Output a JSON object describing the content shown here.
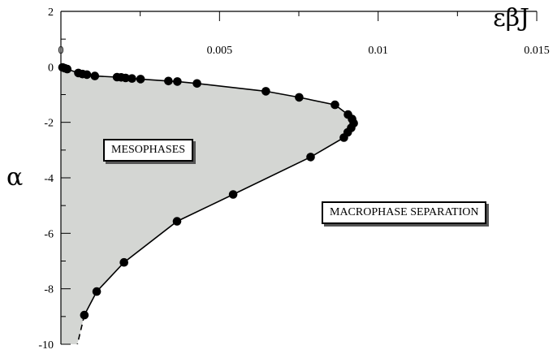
{
  "chart_data": {
    "type": "scatter",
    "xlabel": "εβJ",
    "ylabel": "α",
    "xlim": [
      0,
      0.015
    ],
    "ylim": [
      -10,
      2
    ],
    "x_axis_position": "top",
    "x_ticks": [
      0,
      0.005,
      0.01,
      0.015
    ],
    "x_tick_labels": [
      "0",
      "0.005",
      "0.01",
      "0.015"
    ],
    "y_ticks": [
      2,
      0,
      -2,
      -4,
      -6,
      -8,
      -10
    ],
    "y_tick_labels": [
      "2",
      "0",
      "-2",
      "-4",
      "-6",
      "-8",
      "-10"
    ],
    "grid": false,
    "series": [
      {
        "color": "#000000",
        "x": [
          5e-05,
          0.00012,
          0.0002,
          0.00055,
          0.00068,
          0.00082,
          0.00107,
          0.00177,
          0.0019,
          0.00204,
          0.00224,
          0.00251,
          0.00339,
          0.00367,
          0.00429,
          0.00646,
          0.00751,
          0.00864,
          0.00905,
          0.00918,
          0.00923,
          0.00915,
          0.00904,
          0.00892,
          0.00787,
          0.00543,
          0.00366,
          0.00199,
          0.00113,
          0.00074
        ],
        "y": [
          -0.02,
          -0.05,
          -0.08,
          -0.22,
          -0.26,
          -0.28,
          -0.33,
          -0.37,
          -0.38,
          -0.4,
          -0.42,
          -0.44,
          -0.51,
          -0.53,
          -0.6,
          -0.88,
          -1.1,
          -1.37,
          -1.72,
          -1.88,
          -2.03,
          -2.2,
          -2.36,
          -2.55,
          -3.25,
          -4.6,
          -5.57,
          -7.05,
          -8.1,
          -8.95
        ]
      }
    ],
    "extrapolation": {
      "style": "dashed",
      "x": [
        0.00074,
        0.00052
      ],
      "y": [
        -8.95,
        -10
      ]
    },
    "shaded_region": {
      "color": "#d4d6d3"
    },
    "region_labels": [
      "MESOPHASES",
      "MACROPHASE SEPARATION"
    ]
  }
}
